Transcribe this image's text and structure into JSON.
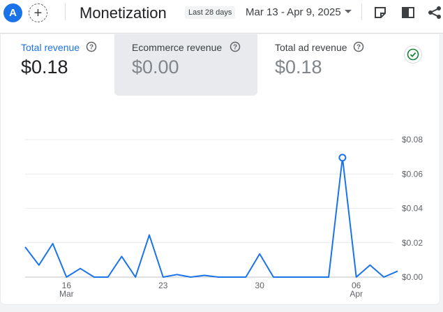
{
  "header": {
    "avatar_letter": "A",
    "add_label": "+",
    "title": "Monetization",
    "date_chip": "Last 28 days",
    "date_range": "Mar 13 - Apr 9, 2025"
  },
  "metrics": [
    {
      "label": "Total revenue",
      "value": "$0.18",
      "selected": true
    },
    {
      "label": "Ecommerce revenue",
      "value": "$0.00",
      "selected": false
    },
    {
      "label": "Total ad revenue",
      "value": "$0.18",
      "selected": false
    }
  ],
  "colors": {
    "accent": "#1a73e8",
    "line": "#1a73e8",
    "check": "#188038"
  },
  "chart_data": {
    "type": "line",
    "title": "Total revenue",
    "x_start": "Mar 13",
    "x_end": "Apr 9",
    "values": [
      0.0175,
      0.007,
      0.0195,
      0.0,
      0.005,
      0.0,
      0.0,
      0.012,
      0.0,
      0.0245,
      0.0,
      0.0015,
      0.0,
      0.001,
      0.0,
      0.0,
      0.0,
      0.0135,
      0.0,
      0.0,
      0.0,
      0.0,
      0.0,
      0.0695,
      0.0,
      0.007,
      0.0,
      0.0035
    ],
    "highlight_index": 23,
    "ylim": [
      0,
      0.08
    ],
    "y_ticks": [
      "$0.08",
      "$0.06",
      "$0.04",
      "$0.02",
      "$0.00"
    ],
    "x_ticks": [
      {
        "index": 3,
        "day": "16",
        "month": "Mar"
      },
      {
        "index": 10,
        "day": "23",
        "month": ""
      },
      {
        "index": 17,
        "day": "30",
        "month": ""
      },
      {
        "index": 24,
        "day": "06",
        "month": "Apr"
      }
    ],
    "grid": true
  }
}
